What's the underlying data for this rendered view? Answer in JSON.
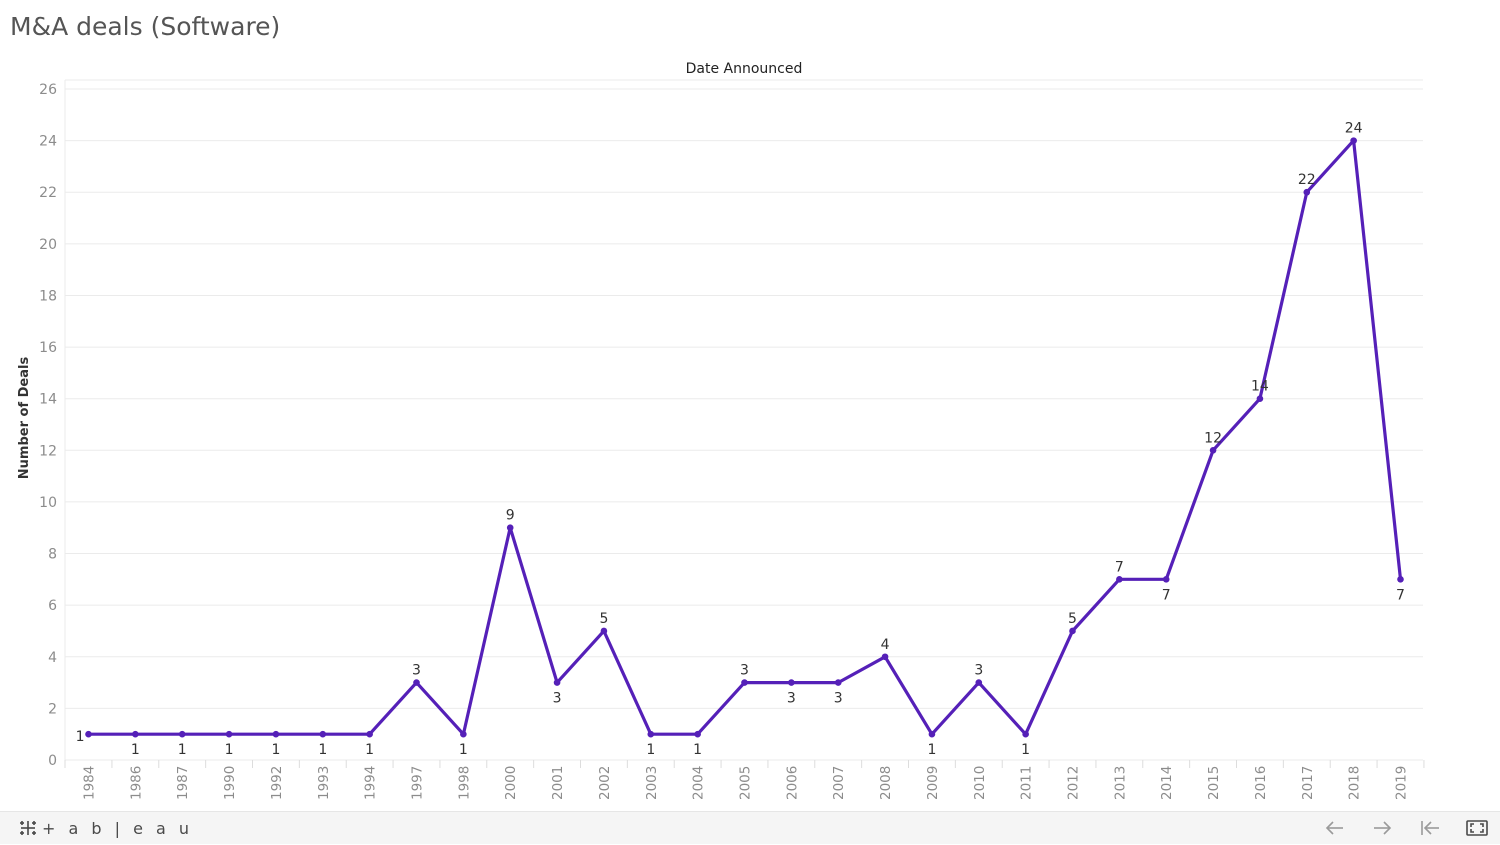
{
  "title": "M&A deals (Software)",
  "toolbar": {
    "logo_text": "+ a b | e a u"
  },
  "colors": {
    "line": "#5520b8",
    "grid": "#ebebeb",
    "axis_text": "#8c8c8c",
    "label_text": "#333333",
    "toolbar_icon": "#9a9a9a"
  },
  "icons": {
    "logo": "tableau-logo-icon",
    "back": "undo-arrow-icon",
    "forward": "redo-arrow-icon",
    "reset": "revert-icon",
    "fullscreen": "fullscreen-icon"
  },
  "chart_data": {
    "type": "line",
    "title": "Date Announced",
    "xlabel": "",
    "ylabel": "Number of Deals",
    "ylim": [
      0,
      26
    ],
    "yticks": [
      0,
      2,
      4,
      6,
      8,
      10,
      12,
      14,
      16,
      18,
      20,
      22,
      24,
      26
    ],
    "grid": true,
    "categories": [
      "1984",
      "1986",
      "1987",
      "1990",
      "1992",
      "1993",
      "1994",
      "1997",
      "1998",
      "2000",
      "2001",
      "2002",
      "2003",
      "2004",
      "2005",
      "2006",
      "2007",
      "2008",
      "2009",
      "2010",
      "2011",
      "2012",
      "2013",
      "2014",
      "2015",
      "2016",
      "2017",
      "2018",
      "2019"
    ],
    "series": [
      {
        "values": [
          1,
          1,
          1,
          1,
          1,
          1,
          1,
          3,
          1,
          9,
          3,
          5,
          1,
          1,
          3,
          3,
          3,
          4,
          1,
          3,
          1,
          5,
          7,
          7,
          12,
          14,
          22,
          24,
          7
        ]
      }
    ]
  }
}
